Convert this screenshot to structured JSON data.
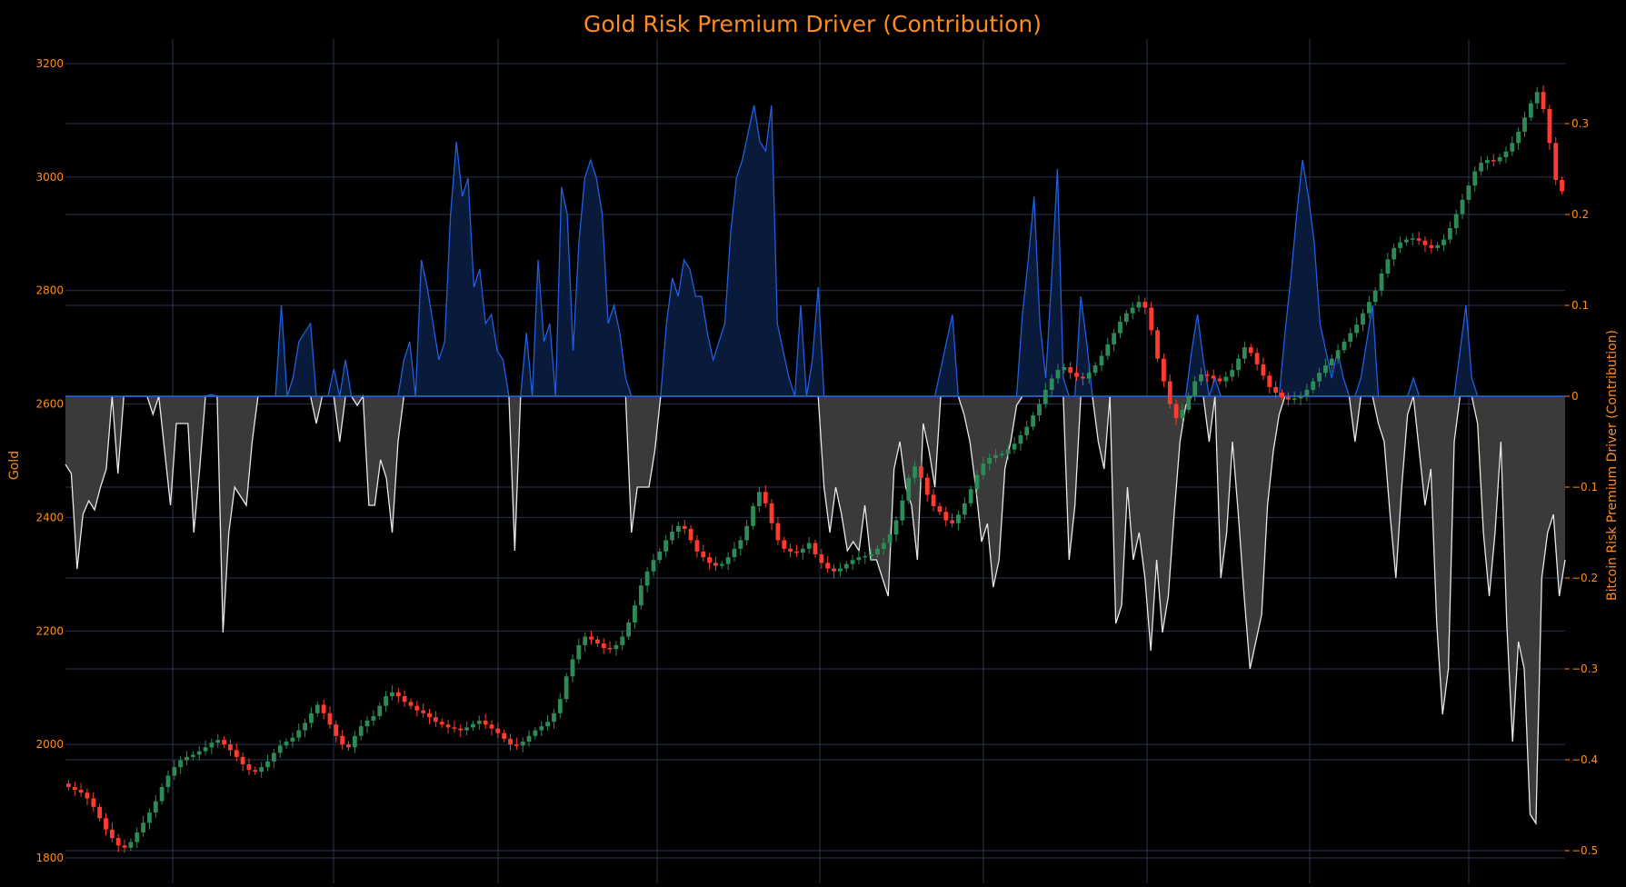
{
  "colors": {
    "background": "#000000",
    "grid": "#2b3350",
    "orange": "#ff8c1a",
    "up": "#2e8b57",
    "down": "#ff3b30",
    "positive_line": "#1f5fe0",
    "positive_fill": "#0a1a3a",
    "negative_line": "#e8e8e8",
    "negative_fill": "#3a3a3a"
  },
  "chart_data": {
    "type": "line",
    "title": "Gold Risk Premium Driver (Contribution)",
    "ylabel_left": "Gold",
    "ylabel_right": "Bitcoin Risk Premium Driver (Contribution)",
    "ylim_left": [
      1800,
      3200
    ],
    "ylim_right": [
      -0.5,
      0.35
    ],
    "left_ticks": [
      "1800",
      "2000",
      "2200",
      "2400",
      "2600",
      "2800",
      "3000",
      "3200"
    ],
    "right_ticks": [
      "−0.5",
      "−0.4",
      "−0.3",
      "−0.2",
      "−0.1",
      "0",
      "0.1",
      "0.2",
      "0.3"
    ],
    "grid": true,
    "series": [
      {
        "name": "Gold",
        "kind": "candlestick",
        "axis": "left",
        "close": [
          1925,
          1920,
          1915,
          1905,
          1890,
          1870,
          1850,
          1835,
          1822,
          1818,
          1828,
          1845,
          1862,
          1880,
          1900,
          1925,
          1945,
          1960,
          1972,
          1978,
          1982,
          1988,
          1995,
          2003,
          2008,
          2000,
          1990,
          1978,
          1965,
          1955,
          1952,
          1960,
          1970,
          1985,
          1998,
          2005,
          2012,
          2025,
          2038,
          2055,
          2070,
          2055,
          2035,
          2015,
          2000,
          1995,
          2015,
          2032,
          2042,
          2050,
          2068,
          2085,
          2092,
          2085,
          2075,
          2068,
          2060,
          2055,
          2048,
          2040,
          2035,
          2030,
          2028,
          2025,
          2030,
          2036,
          2042,
          2035,
          2028,
          2020,
          2010,
          2000,
          1998,
          2005,
          2015,
          2025,
          2032,
          2040,
          2055,
          2080,
          2120,
          2150,
          2175,
          2190,
          2185,
          2178,
          2170,
          2168,
          2175,
          2190,
          2215,
          2245,
          2280,
          2305,
          2325,
          2340,
          2360,
          2375,
          2385,
          2380,
          2360,
          2340,
          2330,
          2320,
          2315,
          2318,
          2330,
          2345,
          2360,
          2385,
          2420,
          2445,
          2425,
          2390,
          2360,
          2345,
          2340,
          2338,
          2345,
          2355,
          2335,
          2320,
          2310,
          2305,
          2310,
          2318,
          2325,
          2330,
          2332,
          2335,
          2345,
          2355,
          2370,
          2395,
          2430,
          2470,
          2490,
          2470,
          2440,
          2420,
          2410,
          2395,
          2390,
          2405,
          2425,
          2450,
          2475,
          2495,
          2505,
          2510,
          2512,
          2520,
          2530,
          2545,
          2560,
          2580,
          2600,
          2625,
          2645,
          2660,
          2665,
          2655,
          2648,
          2645,
          2655,
          2668,
          2685,
          2705,
          2725,
          2745,
          2760,
          2770,
          2780,
          2770,
          2730,
          2680,
          2640,
          2600,
          2575,
          2590,
          2615,
          2640,
          2652,
          2650,
          2645,
          2640,
          2648,
          2660,
          2680,
          2700,
          2690,
          2670,
          2650,
          2630,
          2620,
          2612,
          2608,
          2610,
          2614,
          2625,
          2640,
          2655,
          2668,
          2680,
          2695,
          2710,
          2725,
          2740,
          2760,
          2780,
          2800,
          2830,
          2855,
          2875,
          2885,
          2890,
          2892,
          2888,
          2880,
          2875,
          2880,
          2890,
          2910,
          2935,
          2960,
          2985,
          3010,
          3025,
          3030,
          3028,
          3035,
          3045,
          3060,
          3080,
          3105,
          3130,
          3150,
          3120,
          3060,
          2995,
          2975
        ],
        "high_low_spread": 15
      },
      {
        "name": "Bitcoin Risk Premium Driver (Contribution)",
        "kind": "area",
        "axis": "right",
        "values": [
          -0.075,
          -0.085,
          -0.19,
          -0.13,
          -0.115,
          -0.125,
          -0.1,
          -0.08,
          0,
          -0.085,
          0,
          0,
          0,
          0,
          0,
          -0.02,
          0,
          -0.06,
          -0.12,
          -0.03,
          -0.03,
          -0.03,
          -0.15,
          -0.08,
          0,
          0.002,
          0,
          -0.26,
          -0.15,
          -0.1,
          -0.11,
          -0.12,
          -0.05,
          0,
          0,
          0,
          0,
          0.1,
          0,
          0.02,
          0.06,
          0.07,
          0.08,
          -0.03,
          0,
          0,
          0.03,
          -0.05,
          0.04,
          0,
          -0.01,
          0,
          -0.12,
          -0.12,
          -0.07,
          -0.09,
          -0.15,
          -0.05,
          0.04,
          0.06,
          0,
          0.15,
          0.12,
          0.08,
          0.04,
          0.06,
          0.2,
          0.28,
          0.22,
          0.24,
          0.12,
          0.14,
          0.08,
          0.09,
          0.05,
          0.04,
          0,
          -0.17,
          0,
          0.07,
          0,
          0.15,
          0.06,
          0.08,
          0,
          0.23,
          0.2,
          0.05,
          0.17,
          0.24,
          0.26,
          0.24,
          0.2,
          0.08,
          0.1,
          0.07,
          0.02,
          -0.15,
          -0.1,
          -0.1,
          -0.1,
          -0.06,
          0,
          0.08,
          0.13,
          0.11,
          0.15,
          0.14,
          0.11,
          0.11,
          0.07,
          0.04,
          0.06,
          0.08,
          0.18,
          0.24,
          0.26,
          0.29,
          0.32,
          0.28,
          0.27,
          0.32,
          0.08,
          0.05,
          0.02,
          0,
          0.1,
          0,
          0.04,
          0.12,
          -0.1,
          -0.15,
          -0.1,
          -0.13,
          -0.17,
          -0.16,
          -0.17,
          -0.12,
          -0.18,
          -0.18,
          -0.2,
          -0.22,
          -0.08,
          -0.05,
          -0.1,
          -0.12,
          -0.18,
          -0.03,
          -0.06,
          -0.1,
          0.03,
          0.06,
          0.09,
          0,
          -0.02,
          -0.05,
          -0.1,
          -0.16,
          -0.14,
          -0.21,
          -0.18,
          -0.08,
          -0.05,
          -0.01,
          0.09,
          0.15,
          0.22,
          0.08,
          0.02,
          0.13,
          0.25,
          0.02,
          -0.18,
          -0.12,
          0.11,
          0.06,
          0,
          -0.05,
          -0.08,
          0,
          -0.25,
          -0.23,
          -0.1,
          -0.18,
          -0.15,
          -0.2,
          -0.28,
          -0.18,
          -0.26,
          -0.22,
          -0.13,
          -0.05,
          -0.01,
          0.05,
          0.09,
          0.04,
          -0.05,
          0.02,
          -0.2,
          -0.15,
          -0.05,
          -0.13,
          -0.22,
          -0.3,
          -0.27,
          -0.24,
          -0.12,
          -0.06,
          -0.02,
          0.07,
          0.13,
          0.2,
          0.26,
          0.22,
          0.17,
          0.08,
          0.05,
          0.02,
          0.05,
          0.02,
          0,
          -0.05,
          0.02,
          0.06,
          0.1,
          -0.03,
          -0.05,
          -0.13,
          -0.2,
          -0.1,
          -0.02,
          0.02,
          -0.06,
          -0.12,
          -0.08,
          -0.25,
          -0.35,
          -0.3,
          -0.05,
          0.05,
          0.1,
          0.02,
          -0.03,
          -0.15,
          -0.22,
          -0.15,
          -0.05,
          -0.25,
          -0.38,
          -0.27,
          -0.3,
          -0.46,
          -0.47,
          -0.2,
          -0.15,
          -0.13,
          -0.22,
          -0.18
        ]
      }
    ]
  }
}
